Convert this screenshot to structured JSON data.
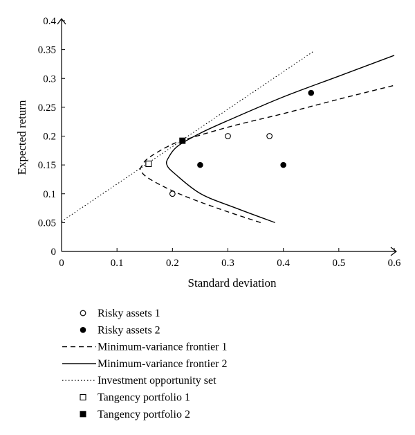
{
  "chart_data": {
    "type": "scatter",
    "xlabel": "Standard deviation",
    "ylabel": "Expected return",
    "xlim": [
      0,
      0.6
    ],
    "ylim": [
      0,
      0.4
    ],
    "x_ticks": [
      "0",
      "0.1",
      "0.2",
      "0.3",
      "0.4",
      "0.5",
      "0.6"
    ],
    "y_ticks": [
      "0",
      "0.05",
      "0.1",
      "0.15",
      "0.2",
      "0.25",
      "0.3",
      "0.35",
      "0.4"
    ],
    "x_tick_values": [
      0,
      0.1,
      0.2,
      0.3,
      0.4,
      0.5,
      0.6
    ],
    "y_tick_values": [
      0,
      0.05,
      0.1,
      0.15,
      0.2,
      0.25,
      0.3,
      0.35,
      0.4
    ],
    "grid": false,
    "legend_position": "below",
    "series": [
      {
        "name": "Risky assets 1",
        "kind": "points",
        "marker": "open-circle",
        "points": [
          [
            0.2,
            0.1
          ],
          [
            0.3,
            0.2
          ],
          [
            0.375,
            0.2
          ]
        ]
      },
      {
        "name": "Risky assets 2",
        "kind": "points",
        "marker": "filled-circle",
        "points": [
          [
            0.25,
            0.15
          ],
          [
            0.4,
            0.15
          ],
          [
            0.45,
            0.275
          ]
        ]
      },
      {
        "name": "Minimum-variance frontier 1",
        "kind": "line",
        "style": "dashed",
        "points": [
          [
            0.359,
            0.05
          ],
          [
            0.281,
            0.075
          ],
          [
            0.212,
            0.1
          ],
          [
            0.16,
            0.125
          ],
          [
            0.143,
            0.14
          ],
          [
            0.146,
            0.15
          ],
          [
            0.158,
            0.163
          ],
          [
            0.2,
            0.186
          ],
          [
            0.244,
            0.2
          ],
          [
            0.314,
            0.219
          ],
          [
            0.4,
            0.239
          ],
          [
            0.5,
            0.264
          ],
          [
            0.6,
            0.288
          ]
        ]
      },
      {
        "name": "Minimum-variance frontier 2",
        "kind": "line",
        "style": "solid",
        "points": [
          [
            0.385,
            0.05
          ],
          [
            0.315,
            0.075
          ],
          [
            0.251,
            0.1
          ],
          [
            0.204,
            0.135
          ],
          [
            0.19,
            0.15
          ],
          [
            0.193,
            0.163
          ],
          [
            0.21,
            0.183
          ],
          [
            0.25,
            0.205
          ],
          [
            0.3,
            0.227
          ],
          [
            0.4,
            0.268
          ],
          [
            0.5,
            0.304
          ],
          [
            0.6,
            0.34
          ]
        ]
      },
      {
        "name": "Investment opportunity set",
        "kind": "line",
        "style": "dotted",
        "points": [
          [
            0,
            0.052
          ],
          [
            0.456,
            0.348
          ]
        ]
      },
      {
        "name": "Tangency portfolio 1",
        "kind": "points",
        "marker": "open-square",
        "points": [
          [
            0.157,
            0.152
          ]
        ]
      },
      {
        "name": "Tangency portfolio 2",
        "kind": "points",
        "marker": "filled-square",
        "points": [
          [
            0.218,
            0.192
          ]
        ]
      }
    ]
  }
}
